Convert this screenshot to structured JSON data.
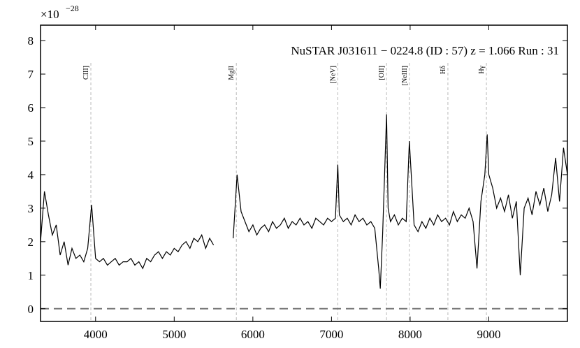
{
  "chart_data": {
    "type": "line",
    "title": "NuSTAR J031611 − 0224.8 (ID : 57)   z = 1.066   Run : 31",
    "offset_text": "×10",
    "offset_exponent": "−28",
    "x": [
      3300,
      3350,
      3400,
      3450,
      3500,
      3550,
      3600,
      3650,
      3700,
      3750,
      3800,
      3850,
      3900,
      3950,
      4000,
      4050,
      4100,
      4150,
      4200,
      4250,
      4300,
      4350,
      4400,
      4450,
      4500,
      4550,
      4600,
      4650,
      4700,
      4750,
      4800,
      4850,
      4900,
      4950,
      5000,
      5050,
      5100,
      5150,
      5200,
      5250,
      5300,
      5350,
      5400,
      5450,
      5500,
      5625,
      5750,
      5800,
      5850,
      5900,
      5950,
      6000,
      6050,
      6100,
      6150,
      6200,
      6250,
      6300,
      6350,
      6400,
      6450,
      6500,
      6550,
      6600,
      6650,
      6700,
      6750,
      6800,
      6850,
      6900,
      6950,
      7000,
      7050,
      7080,
      7100,
      7150,
      7200,
      7250,
      7300,
      7350,
      7400,
      7450,
      7500,
      7550,
      7600,
      7620,
      7650,
      7700,
      7720,
      7750,
      7800,
      7850,
      7900,
      7950,
      7990,
      8050,
      8100,
      8150,
      8200,
      8250,
      8300,
      8350,
      8400,
      8450,
      8500,
      8550,
      8600,
      8650,
      8700,
      8750,
      8800,
      8850,
      8900,
      8950,
      8980,
      9000,
      9050,
      9100,
      9150,
      9200,
      9250,
      9300,
      9350,
      9400,
      9450,
      9500,
      9550,
      9600,
      9650,
      9700,
      9750,
      9800,
      9850,
      9900,
      9950,
      10000
    ],
    "series": [
      {
        "name": "spectrum",
        "color": "#000000",
        "values": [
          2.0,
          3.5,
          2.8,
          2.2,
          2.5,
          1.6,
          2.0,
          1.3,
          1.8,
          1.5,
          1.6,
          1.4,
          1.8,
          3.1,
          1.5,
          1.4,
          1.5,
          1.3,
          1.4,
          1.5,
          1.3,
          1.4,
          1.4,
          1.5,
          1.3,
          1.4,
          1.2,
          1.5,
          1.4,
          1.6,
          1.7,
          1.5,
          1.7,
          1.6,
          1.8,
          1.7,
          1.9,
          2.0,
          1.8,
          2.1,
          2.0,
          2.2,
          1.8,
          2.1,
          1.9,
          null,
          2.1,
          4.0,
          2.9,
          2.6,
          2.3,
          2.5,
          2.2,
          2.4,
          2.5,
          2.3,
          2.6,
          2.4,
          2.5,
          2.7,
          2.4,
          2.6,
          2.5,
          2.7,
          2.5,
          2.6,
          2.4,
          2.7,
          2.6,
          2.5,
          2.7,
          2.6,
          2.7,
          4.3,
          2.8,
          2.6,
          2.7,
          2.5,
          2.8,
          2.6,
          2.7,
          2.5,
          2.6,
          2.4,
          1.2,
          0.6,
          2.2,
          5.8,
          3.0,
          2.6,
          2.8,
          2.5,
          2.7,
          2.6,
          5.0,
          2.5,
          2.3,
          2.6,
          2.4,
          2.7,
          2.5,
          2.8,
          2.6,
          2.7,
          2.5,
          2.9,
          2.6,
          2.8,
          2.7,
          3.0,
          2.6,
          1.2,
          3.2,
          4.0,
          5.2,
          4.0,
          3.6,
          3.0,
          3.3,
          2.9,
          3.4,
          2.7,
          3.2,
          1.0,
          3.0,
          3.3,
          2.8,
          3.5,
          3.1,
          3.6,
          2.9,
          3.4,
          4.5,
          3.2,
          4.8,
          4.0
        ]
      }
    ],
    "lines": [
      {
        "label": "CIII]",
        "x": 3940
      },
      {
        "label": "MgII",
        "x": 5790
      },
      {
        "label": "[NeV]",
        "x": 7080
      },
      {
        "label": "[OII]",
        "x": 7700
      },
      {
        "label": "[NeIII]",
        "x": 7990
      },
      {
        "label": "Hδ",
        "x": 8480
      },
      {
        "label": "Hγ",
        "x": 8970
      }
    ],
    "hline": 0,
    "xlim": [
      3300,
      10000
    ],
    "ylim": [
      -0.38,
      8.46
    ],
    "xticks": [
      4000,
      5000,
      6000,
      7000,
      8000,
      9000
    ],
    "yticks": [
      0,
      1,
      2,
      3,
      4,
      5,
      6,
      7,
      8
    ]
  }
}
